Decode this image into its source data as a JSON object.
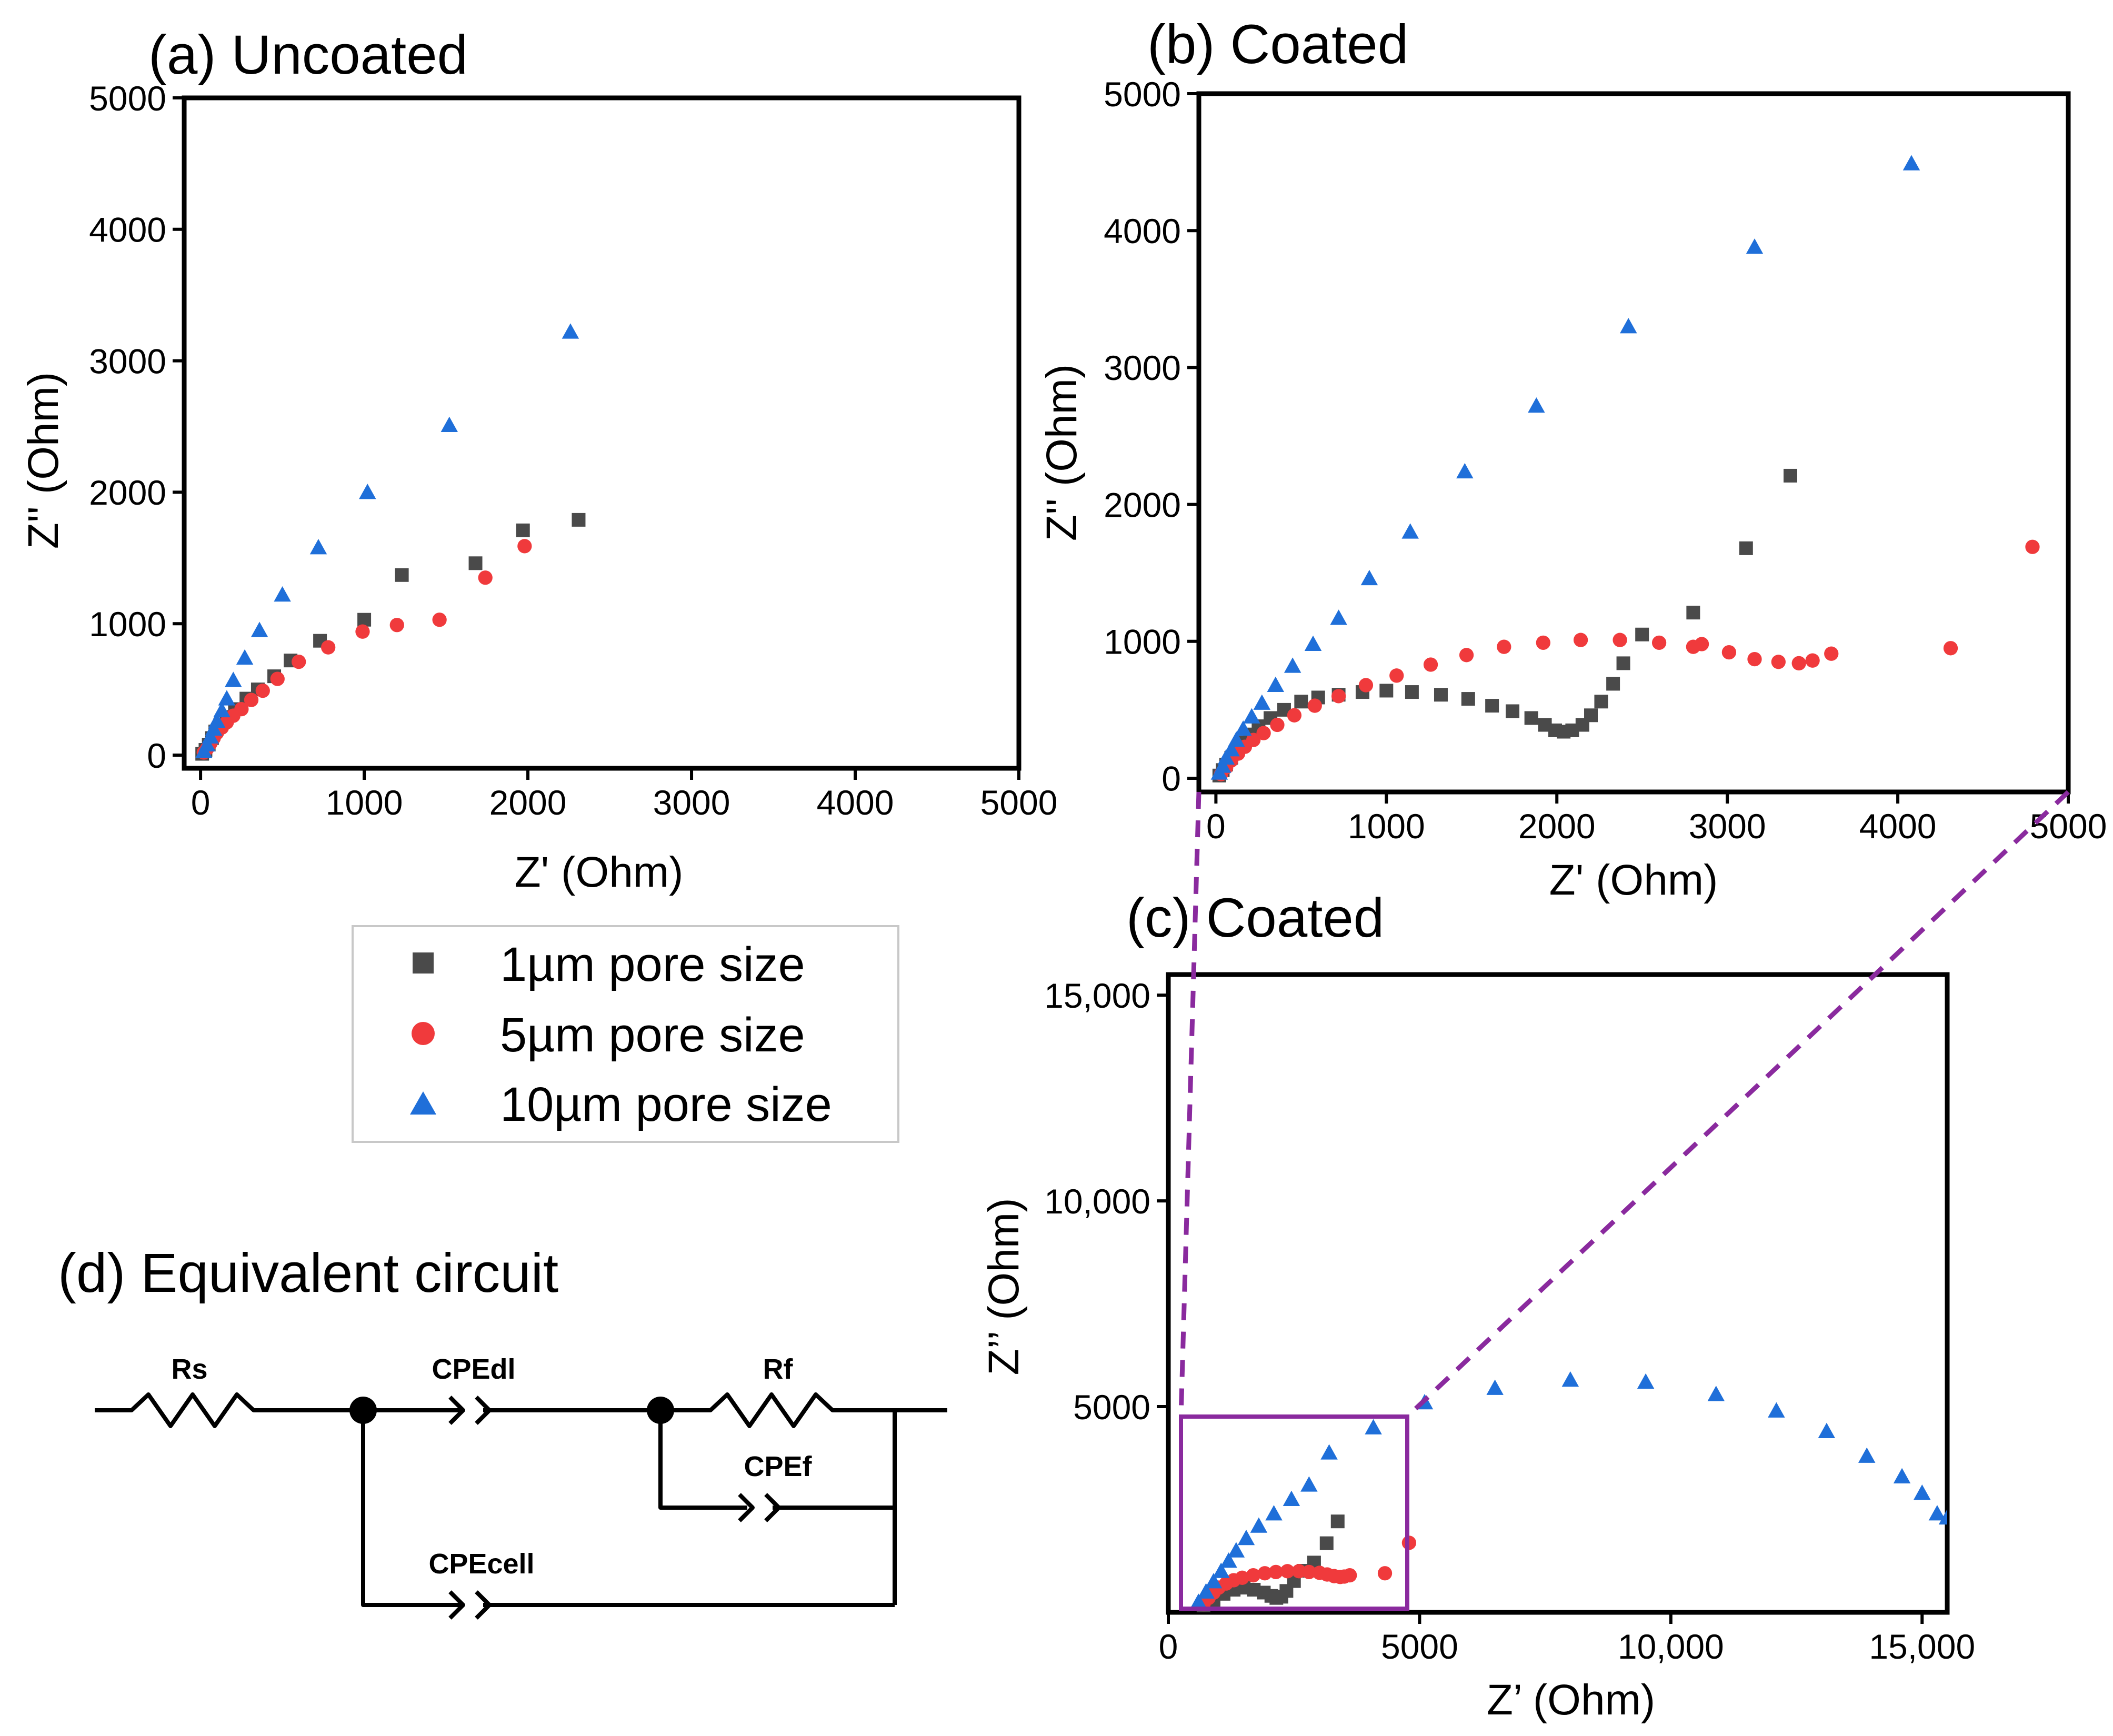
{
  "colors": {
    "series_1um": "#4a4a4a",
    "series_5um": "#f03a3c",
    "series_10um": "#1f6fd9",
    "zoom_box": "#8a2a9e",
    "zoom_line": "#8a2a9e"
  },
  "legend": [
    {
      "label": "1µm pore size",
      "marker": "square",
      "color": "#4a4a4a"
    },
    {
      "label": "5µm pore size",
      "marker": "circle",
      "color": "#f03a3c"
    },
    {
      "label": "10µm pore size",
      "marker": "triangle",
      "color": "#1f6fd9"
    }
  ],
  "circuit": {
    "title": "(d) Equivalent circuit",
    "labels": {
      "rs": "Rs",
      "cpedl": "CPEdl",
      "rf": "Rf",
      "cpef": "CPEf",
      "cpecell": "CPEcell"
    }
  },
  "chart_data": [
    {
      "panel": "a",
      "type": "scatter",
      "title": "(a) Uncoated",
      "xlabel": "Z' (Ohm)",
      "ylabel": "Z'' (Ohm)",
      "xlim": [
        -100,
        5000
      ],
      "ylim": [
        -100,
        5000
      ],
      "xticks": [
        0,
        1000,
        2000,
        3000,
        4000,
        5000
      ],
      "yticks": [
        0,
        1000,
        2000,
        3000,
        4000,
        5000
      ],
      "xtick_labels": [
        "0",
        "1000",
        "2000",
        "3000",
        "4000",
        "5000"
      ],
      "ytick_labels": [
        "0",
        "1000",
        "2000",
        "3000",
        "4000",
        "5000"
      ],
      "series": [
        {
          "name": "1µm pore size",
          "marker": "square",
          "color": "#4a4a4a",
          "x": [
            10,
            30,
            50,
            70,
            90,
            120,
            160,
            210,
            280,
            350,
            450,
            550,
            730,
            1000,
            1230,
            1680,
            1970,
            2310
          ],
          "y": [
            10,
            40,
            80,
            130,
            180,
            230,
            290,
            350,
            430,
            500,
            600,
            720,
            870,
            1030,
            1370,
            1460,
            1710,
            1790
          ]
        },
        {
          "name": "5µm pore size",
          "marker": "circle",
          "color": "#f03a3c",
          "x": [
            20,
            40,
            60,
            80,
            100,
            130,
            160,
            200,
            250,
            310,
            380,
            470,
            600,
            780,
            990,
            1200,
            1460,
            1740,
            1980
          ],
          "y": [
            20,
            50,
            90,
            130,
            170,
            210,
            250,
            300,
            350,
            420,
            490,
            580,
            710,
            820,
            940,
            990,
            1030,
            1350,
            1590
          ]
        },
        {
          "name": "10µm pore size",
          "marker": "triangle",
          "color": "#1f6fd9",
          "x": [
            20,
            40,
            60,
            80,
            100,
            130,
            160,
            200,
            270,
            360,
            500,
            720,
            1020,
            1520,
            2260
          ],
          "y": [
            30,
            80,
            140,
            200,
            260,
            340,
            430,
            570,
            740,
            950,
            1220,
            1580,
            2000,
            2510,
            3220
          ]
        }
      ]
    },
    {
      "panel": "b",
      "type": "scatter",
      "title": "(b) Coated",
      "xlabel": "Z' (Ohm)",
      "ylabel": "Z'' (Ohm)",
      "xlim": [
        -100,
        5000
      ],
      "ylim": [
        -100,
        5000
      ],
      "xticks": [
        0,
        1000,
        2000,
        3000,
        4000,
        5000
      ],
      "yticks": [
        0,
        1000,
        2000,
        3000,
        4000,
        5000
      ],
      "xtick_labels": [
        "0",
        "1000",
        "2000",
        "3000",
        "4000",
        "5000"
      ],
      "ytick_labels": [
        "0",
        "1000",
        "2000",
        "3000",
        "4000",
        "5000"
      ],
      "series": [
        {
          "name": "1µm pore size",
          "marker": "square",
          "color": "#4a4a4a",
          "x": [
            20,
            40,
            60,
            90,
            120,
            160,
            200,
            250,
            320,
            400,
            500,
            600,
            720,
            860,
            1000,
            1150,
            1320,
            1480,
            1620,
            1740,
            1850,
            1930,
            1990,
            2040,
            2090,
            2150,
            2200,
            2260,
            2330,
            2390,
            2500,
            2800,
            3110,
            3370
          ],
          "y": [
            20,
            60,
            100,
            150,
            200,
            260,
            320,
            380,
            440,
            500,
            560,
            590,
            610,
            630,
            640,
            630,
            610,
            580,
            530,
            490,
            440,
            390,
            350,
            340,
            350,
            390,
            460,
            560,
            690,
            840,
            1050,
            1210,
            1680,
            2210
          ]
        },
        {
          "name": "5µm pore size",
          "marker": "circle",
          "color": "#f03a3c",
          "x": [
            30,
            60,
            90,
            130,
            170,
            220,
            280,
            360,
            460,
            580,
            720,
            880,
            1060,
            1260,
            1470,
            1690,
            1920,
            2140,
            2370,
            2600,
            2800,
            2850,
            3010,
            3160,
            3300,
            3420,
            3500,
            3610,
            4310,
            4790
          ],
          "y": [
            30,
            80,
            130,
            180,
            230,
            280,
            330,
            390,
            460,
            530,
            600,
            680,
            750,
            830,
            900,
            960,
            990,
            1010,
            1010,
            990,
            960,
            980,
            920,
            870,
            850,
            840,
            860,
            910,
            950,
            1690
          ]
        },
        {
          "name": "10µm pore size",
          "marker": "triangle",
          "color": "#1f6fd9",
          "x": [
            20,
            40,
            60,
            90,
            120,
            160,
            210,
            270,
            350,
            450,
            570,
            720,
            900,
            1140,
            1460,
            1880,
            2420,
            3160,
            4080
          ],
          "y": [
            40,
            90,
            150,
            210,
            280,
            360,
            450,
            550,
            680,
            820,
            980,
            1170,
            1460,
            1800,
            2240,
            2720,
            3300,
            3880,
            4490
          ]
        }
      ]
    },
    {
      "panel": "c",
      "type": "scatter",
      "title": "(c) Coated",
      "xlabel": "Z’ (Ohm)",
      "ylabel": "Z’’ (Ohm)",
      "xlim": [
        0,
        15500
      ],
      "ylim": [
        0,
        15500
      ],
      "xticks": [
        0,
        5000,
        10000,
        15000
      ],
      "yticks": [
        5000,
        10000,
        15000
      ],
      "xtick_labels": [
        "0",
        "5000",
        "10,000",
        "15,000"
      ],
      "ytick_labels": [
        "5000",
        "10,000",
        "15,000"
      ],
      "zoom_box": {
        "x": [
          600,
          4800
        ],
        "y": [
          0,
          4700
        ]
      },
      "series": [
        {
          "name": "1µm pore size",
          "marker": "square",
          "color": "#4a4a4a",
          "x": [
            700,
            900,
            1100,
            1300,
            1500,
            1700,
            1900,
            2050,
            2150,
            2250,
            2350,
            2500,
            2700,
            2900,
            3150,
            3370
          ],
          "y": [
            150,
            300,
            450,
            550,
            600,
            550,
            480,
            400,
            350,
            380,
            520,
            760,
            1010,
            1210,
            1680,
            2210
          ]
        },
        {
          "name": "5µm pore size",
          "marker": "circle",
          "color": "#f03a3c",
          "x": [
            700,
            800,
            900,
            1000,
            1150,
            1300,
            1470,
            1690,
            1920,
            2140,
            2370,
            2600,
            2800,
            3010,
            3160,
            3300,
            3420,
            3500,
            3610,
            4310,
            4790
          ],
          "y": [
            200,
            350,
            480,
            600,
            700,
            780,
            840,
            900,
            950,
            980,
            1000,
            1000,
            980,
            960,
            920,
            880,
            860,
            870,
            900,
            950,
            1690
          ]
        },
        {
          "name": "10µm pore size",
          "marker": "triangle",
          "color": "#1f6fd9",
          "x": [
            600,
            750,
            900,
            1050,
            1200,
            1350,
            1550,
            1800,
            2100,
            2450,
            2800,
            3200,
            4080,
            5100,
            6500,
            8000,
            9500,
            10900,
            12100,
            13100,
            13900,
            14600,
            15000,
            15300,
            15500
          ],
          "y": [
            250,
            500,
            750,
            1000,
            1250,
            1500,
            1800,
            2100,
            2400,
            2750,
            3100,
            3880,
            4490,
            5100,
            5450,
            5650,
            5600,
            5300,
            4900,
            4400,
            3800,
            3300,
            2900,
            2400,
            2300
          ]
        }
      ]
    }
  ]
}
